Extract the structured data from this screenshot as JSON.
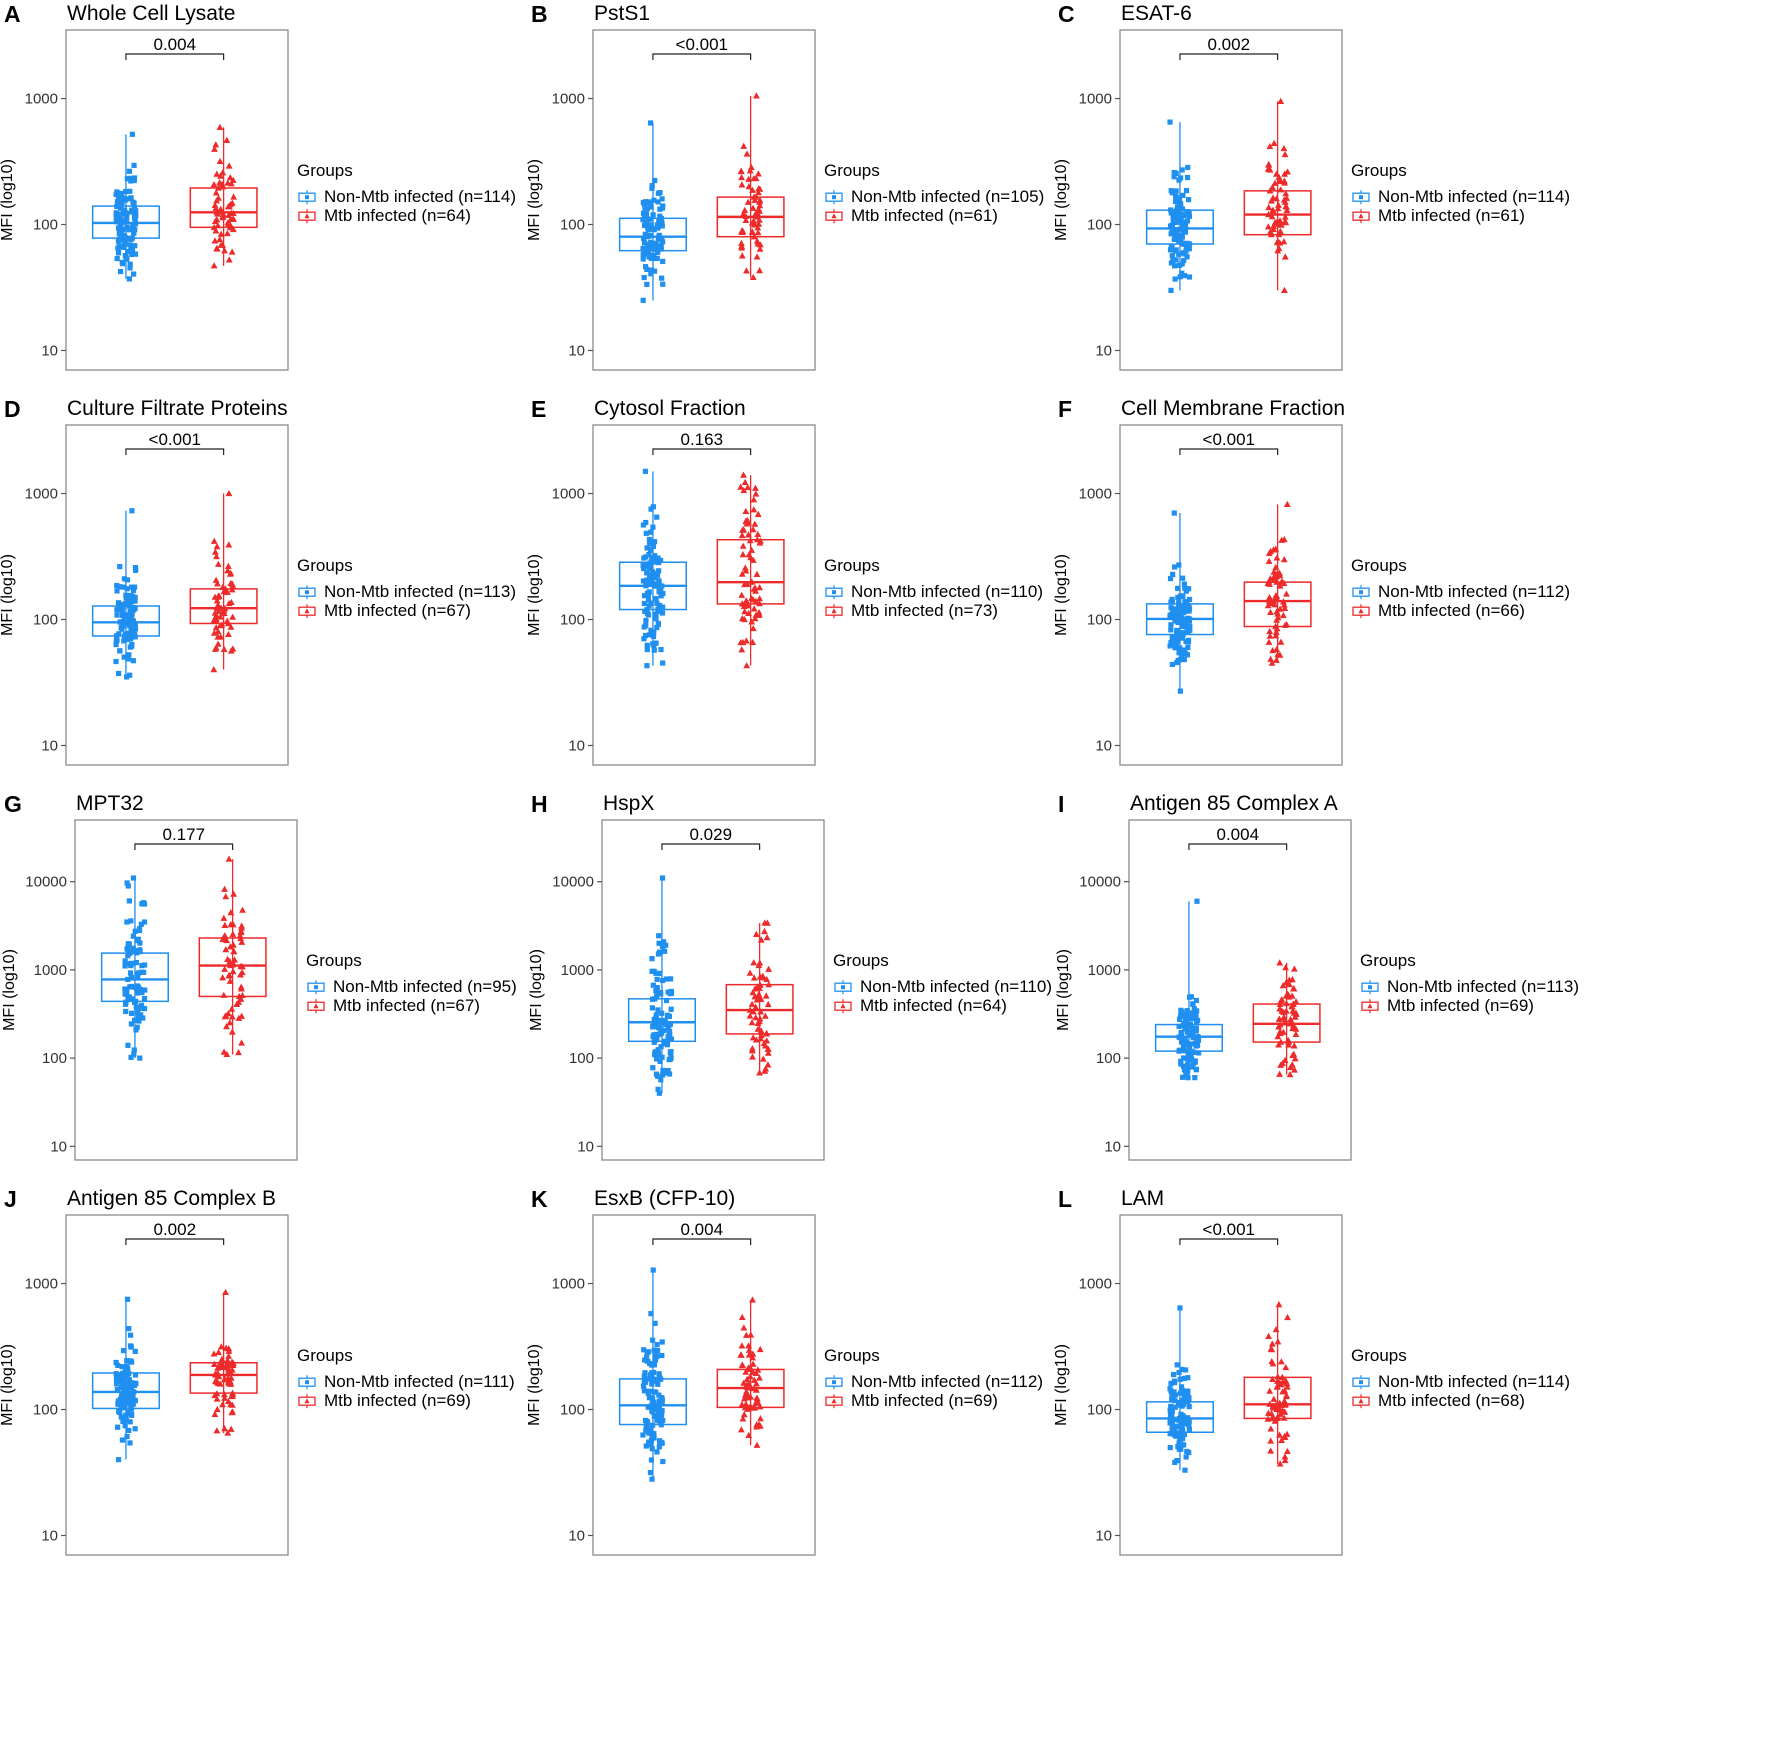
{
  "colors": {
    "non_mtb": "#1f8ff0",
    "mtb": "#ee2a2a",
    "frame": "#8a8a8a"
  },
  "legend_title": "Groups",
  "chart_data": [
    {
      "type": "box",
      "panel": "A",
      "title": "Whole Cell Lysate",
      "ylabel": "MFI (log10)",
      "yscale": "log",
      "ylim": [
        7,
        3500
      ],
      "yticks": [
        10,
        100,
        1000
      ],
      "pvalue": "0.004",
      "groups": [
        {
          "name": "Non-Mtb infected (n=114)",
          "n": 114,
          "min": 37,
          "q1": 78,
          "median": 103,
          "q3": 140,
          "max": 520
        },
        {
          "name": "Mtb infected (n=64)",
          "n": 64,
          "min": 47,
          "q1": 95,
          "median": 125,
          "q3": 195,
          "max": 590
        }
      ]
    },
    {
      "type": "box",
      "panel": "B",
      "title": "PstS1",
      "ylabel": "MFI (log10)",
      "yscale": "log",
      "ylim": [
        7,
        3500
      ],
      "yticks": [
        10,
        100,
        1000
      ],
      "pvalue": "<0.001",
      "groups": [
        {
          "name": "Non-Mtb infected (n=105)",
          "n": 105,
          "min": 25,
          "q1": 62,
          "median": 80,
          "q3": 112,
          "max": 640
        },
        {
          "name": "Mtb infected (n=61)",
          "n": 61,
          "min": 38,
          "q1": 80,
          "median": 115,
          "q3": 165,
          "max": 1050
        }
      ]
    },
    {
      "type": "box",
      "panel": "C",
      "title": "ESAT-6",
      "ylabel": "MFI (log10)",
      "yscale": "log",
      "ylim": [
        7,
        3500
      ],
      "yticks": [
        10,
        100,
        1000
      ],
      "pvalue": "0.002",
      "groups": [
        {
          "name": "Non-Mtb infected (n=114)",
          "n": 114,
          "min": 30,
          "q1": 70,
          "median": 93,
          "q3": 130,
          "max": 650
        },
        {
          "name": "Mtb infected (n=61)",
          "n": 61,
          "min": 30,
          "q1": 83,
          "median": 120,
          "q3": 185,
          "max": 950
        }
      ]
    },
    {
      "type": "box",
      "panel": "D",
      "title": "Culture Filtrate Proteins",
      "ylabel": "MFI (log10)",
      "yscale": "log",
      "ylim": [
        7,
        3500
      ],
      "yticks": [
        10,
        100,
        1000
      ],
      "pvalue": "<0.001",
      "groups": [
        {
          "name": "Non-Mtb infected (n=113)",
          "n": 113,
          "min": 35,
          "q1": 74,
          "median": 95,
          "q3": 128,
          "max": 730
        },
        {
          "name": "Mtb infected (n=67)",
          "n": 67,
          "min": 40,
          "q1": 93,
          "median": 123,
          "q3": 175,
          "max": 1000
        }
      ]
    },
    {
      "type": "box",
      "panel": "E",
      "title": "Cytosol Fraction",
      "ylabel": "MFI (log10)",
      "yscale": "log",
      "ylim": [
        7,
        3500
      ],
      "yticks": [
        10,
        100,
        1000
      ],
      "pvalue": "0.163",
      "groups": [
        {
          "name": "Non-Mtb infected (n=110)",
          "n": 110,
          "min": 43,
          "q1": 120,
          "median": 185,
          "q3": 285,
          "max": 1500
        },
        {
          "name": "Mtb infected (n=73)",
          "n": 73,
          "min": 43,
          "q1": 133,
          "median": 198,
          "q3": 430,
          "max": 1400
        }
      ]
    },
    {
      "type": "box",
      "panel": "F",
      "title": "Cell Membrane Fraction",
      "ylabel": "MFI (log10)",
      "yscale": "log",
      "ylim": [
        7,
        3500
      ],
      "yticks": [
        10,
        100,
        1000
      ],
      "pvalue": "<0.001",
      "groups": [
        {
          "name": "Non-Mtb infected (n=112)",
          "n": 112,
          "min": 27,
          "q1": 76,
          "median": 101,
          "q3": 133,
          "max": 700
        },
        {
          "name": "Mtb infected (n=66)",
          "n": 66,
          "min": 45,
          "q1": 88,
          "median": 140,
          "q3": 198,
          "max": 820
        }
      ]
    },
    {
      "type": "box",
      "panel": "G",
      "title": "MPT32",
      "ylabel": "MFI (log10)",
      "yscale": "log",
      "ylim": [
        7,
        50000
      ],
      "yticks": [
        10,
        100,
        1000,
        10000
      ],
      "pvalue": "0.177",
      "groups": [
        {
          "name": "Non-Mtb infected (n=95)",
          "n": 95,
          "min": 100,
          "q1": 440,
          "median": 780,
          "q3": 1550,
          "max": 11000
        },
        {
          "name": "Mtb infected (n=67)",
          "n": 67,
          "min": 110,
          "q1": 500,
          "median": 1120,
          "q3": 2300,
          "max": 18000
        }
      ]
    },
    {
      "type": "box",
      "panel": "H",
      "title": "HspX",
      "ylabel": "MFI (log10)",
      "yscale": "log",
      "ylim": [
        7,
        50000
      ],
      "yticks": [
        10,
        100,
        1000,
        10000
      ],
      "pvalue": "0.029",
      "groups": [
        {
          "name": "Non-Mtb infected (n=110)",
          "n": 110,
          "min": 40,
          "q1": 155,
          "median": 255,
          "q3": 470,
          "max": 11000
        },
        {
          "name": "Mtb infected (n=64)",
          "n": 64,
          "min": 68,
          "q1": 188,
          "median": 350,
          "q3": 680,
          "max": 3400
        }
      ]
    },
    {
      "type": "box",
      "panel": "I",
      "title": "Antigen 85 Complex A",
      "ylabel": "MFI (log10)",
      "yscale": "log",
      "ylim": [
        7,
        50000
      ],
      "yticks": [
        10,
        100,
        1000,
        10000
      ],
      "pvalue": "0.004",
      "groups": [
        {
          "name": "Non-Mtb infected (n=113)",
          "n": 113,
          "min": 60,
          "q1": 120,
          "median": 175,
          "q3": 240,
          "max": 6000
        },
        {
          "name": "Mtb infected (n=69)",
          "n": 69,
          "min": 65,
          "q1": 152,
          "median": 245,
          "q3": 410,
          "max": 1200
        }
      ]
    },
    {
      "type": "box",
      "panel": "J",
      "title": "Antigen 85 Complex B",
      "ylabel": "MFI (log10)",
      "yscale": "log",
      "ylim": [
        7,
        3500
      ],
      "yticks": [
        10,
        100,
        1000
      ],
      "pvalue": "0.002",
      "groups": [
        {
          "name": "Non-Mtb infected (n=111)",
          "n": 111,
          "min": 40,
          "q1": 102,
          "median": 138,
          "q3": 195,
          "max": 750
        },
        {
          "name": "Mtb infected (n=69)",
          "n": 69,
          "min": 65,
          "q1": 135,
          "median": 188,
          "q3": 235,
          "max": 850
        }
      ]
    },
    {
      "type": "box",
      "panel": "K",
      "title": "EsxB (CFP-10)",
      "ylabel": "MFI (log10)",
      "yscale": "log",
      "ylim": [
        7,
        3500
      ],
      "yticks": [
        10,
        100,
        1000
      ],
      "pvalue": "0.004",
      "groups": [
        {
          "name": "Non-Mtb infected (n=112)",
          "n": 112,
          "min": 28,
          "q1": 76,
          "median": 108,
          "q3": 175,
          "max": 1280
        },
        {
          "name": "Mtb infected (n=69)",
          "n": 69,
          "min": 52,
          "q1": 104,
          "median": 148,
          "q3": 208,
          "max": 740
        }
      ]
    },
    {
      "type": "box",
      "panel": "L",
      "title": "LAM",
      "ylabel": "MFI (log10)",
      "yscale": "log",
      "ylim": [
        7,
        3500
      ],
      "yticks": [
        10,
        100,
        1000
      ],
      "pvalue": "<0.001",
      "groups": [
        {
          "name": "Non-Mtb infected (n=114)",
          "n": 114,
          "min": 33,
          "q1": 66,
          "median": 85,
          "q3": 115,
          "max": 640
        },
        {
          "name": "Mtb infected (n=68)",
          "n": 68,
          "min": 37,
          "q1": 85,
          "median": 110,
          "q3": 180,
          "max": 680
        }
      ]
    }
  ]
}
